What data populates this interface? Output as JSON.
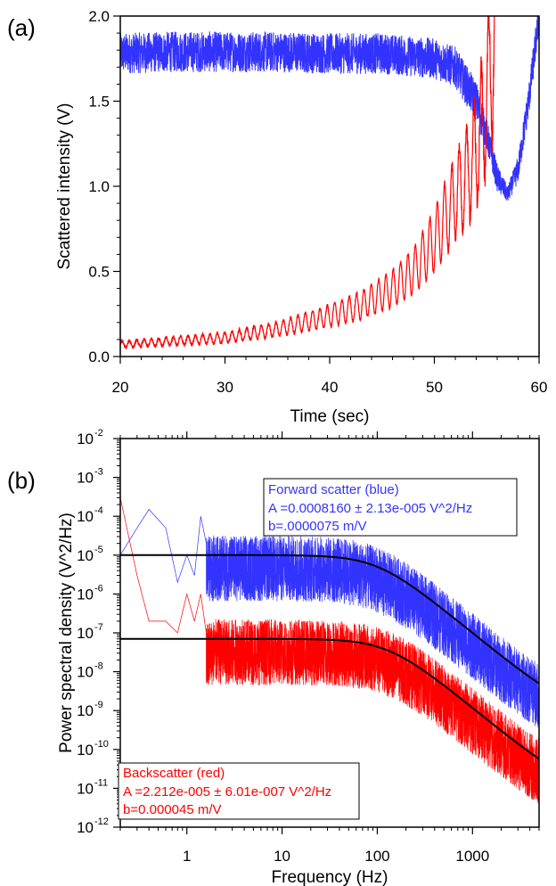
{
  "chart_data": [
    {
      "panel_label": "(a)",
      "type": "line",
      "xlabel": "Time (sec)",
      "ylabel": "Scattered intensity (V)",
      "xlim": [
        20,
        60
      ],
      "ylim": [
        0,
        2
      ],
      "x_ticks": [
        "20",
        "30",
        "40",
        "50",
        "60"
      ],
      "y_ticks": [
        "0.0",
        "0.5",
        "1.0",
        "1.5",
        "2.0"
      ],
      "grid": false,
      "series": [
        {
          "color": "#3333ff",
          "x": [
            20,
            25,
            30,
            35,
            40,
            45,
            50,
            52,
            53,
            54,
            55,
            56,
            57,
            58,
            59,
            60
          ],
          "y": [
            1.78,
            1.79,
            1.79,
            1.79,
            1.78,
            1.78,
            1.75,
            1.7,
            1.6,
            1.5,
            1.3,
            1.05,
            0.95,
            1.1,
            1.5,
            2.0
          ],
          "noise_amplitude": [
            0.12,
            0.12,
            0.12,
            0.12,
            0.12,
            0.12,
            0.12,
            0.12,
            0.12,
            0.12,
            0.1,
            0.08,
            0.05,
            0.08,
            0.1,
            0.1
          ]
        },
        {
          "color": "#ff0000",
          "x": [
            20,
            25,
            30,
            35,
            40,
            43,
            46,
            48,
            50,
            52,
            53,
            54,
            55,
            56
          ],
          "y": [
            0.07,
            0.09,
            0.11,
            0.16,
            0.24,
            0.3,
            0.4,
            0.5,
            0.68,
            0.93,
            1.05,
            1.2,
            1.5,
            2.0
          ],
          "oscillation_period": 0.7,
          "oscillation_amplitude_fraction": 0.45
        }
      ]
    },
    {
      "panel_label": "(b)",
      "type": "line",
      "xlabel": "Frequency (Hz)",
      "ylabel": "Power spectral density (V^2/Hz)",
      "xscale": "log",
      "yscale": "log",
      "xlim": [
        0.2,
        5000
      ],
      "ylim": [
        1e-12,
        0.01
      ],
      "x_ticks": [
        "1",
        "10",
        "100",
        "1000"
      ],
      "y_ticks": [
        "-12",
        "-11",
        "-10",
        "-9",
        "-8",
        "-7",
        "-6",
        "-5",
        "-4",
        "-3",
        "-2"
      ],
      "y_tick_base": "10",
      "series": [
        {
          "color": "#3333ff",
          "kind": "noisy-spectrum",
          "plateau": 1e-05,
          "corner_hz": 100,
          "floor": 1e-09,
          "low_freq_points": [
            [
              0.2,
              1e-05
            ],
            [
              0.3,
              5e-05
            ],
            [
              0.4,
              0.00015
            ],
            [
              0.6,
              5e-05
            ],
            [
              0.8,
              2e-06
            ],
            [
              1.0,
              1e-05
            ],
            [
              1.2,
              3e-06
            ],
            [
              1.4,
              0.0001
            ],
            [
              1.6,
              2e-05
            ]
          ]
        },
        {
          "color": "#ff0000",
          "kind": "noisy-spectrum",
          "plateau": 7e-08,
          "corner_hz": 130,
          "floor": 1e-11,
          "low_freq_points": [
            [
              0.2,
              0.0003
            ],
            [
              0.3,
              3e-06
            ],
            [
              0.4,
              2e-07
            ],
            [
              0.6,
              2e-07
            ],
            [
              0.8,
              1e-07
            ],
            [
              1.0,
              1e-06
            ],
            [
              1.2,
              2e-07
            ],
            [
              1.4,
              1e-06
            ],
            [
              1.6,
              1e-07
            ]
          ]
        },
        {
          "color": "#000000",
          "kind": "fit",
          "plateau": 1e-05,
          "corner_hz": 100,
          "floor": 1e-09
        },
        {
          "color": "#000000",
          "kind": "fit",
          "plateau": 7e-08,
          "corner_hz": 130,
          "floor": 1e-11
        }
      ],
      "legends": [
        {
          "color": "#3333ff",
          "position": "top-right",
          "lines": [
            "Forward scatter (blue)",
            "A =0.0008160 ± 2.13e-005 V^2/Hz",
            "b=.0000075 m/V"
          ]
        },
        {
          "color": "#ff0000",
          "position": "bottom-left",
          "lines": [
            "Backscatter (red)",
            "A =2.212e-005 ± 6.01e-007 V^2/Hz",
            "b=0.000045 m/V"
          ]
        }
      ]
    }
  ]
}
